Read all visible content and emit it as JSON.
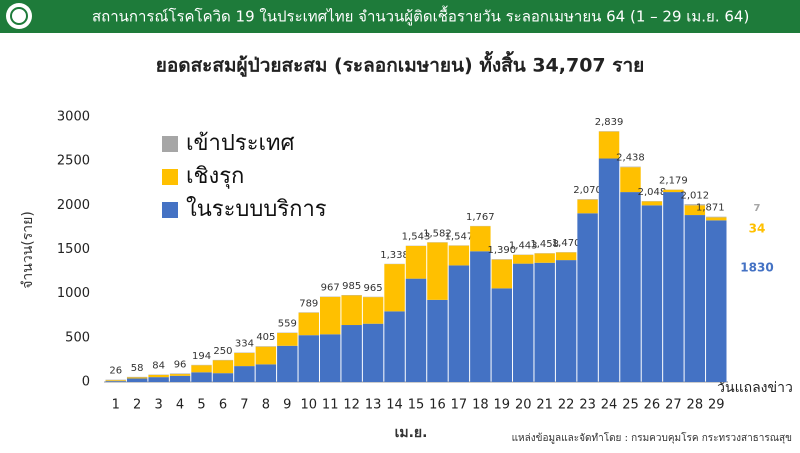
{
  "header": {
    "title": "สถานการณ์โรคโควิด 19 ในประเทศไทย จำนวนผู้ติดเชื้อรายวัน ระลอกเมษายน 64 (1 – 29 เม.ย. 64)"
  },
  "chart_data": {
    "type": "stacked-bar",
    "title": "ยอดสะสมผู้ป่วยสะสม (ระลอกเมษายน) ทั้งสิ้น 34,707 ราย",
    "y_label": "จำนวน(ราย)",
    "x_label": "เม.ย.",
    "annotation": "วันแถลงข่าว",
    "source": "แหล่งข้อมูลและจัดทำโดย : กรมควบคุมโรค กระทรวงสาธารณสุข",
    "categories": [
      1,
      2,
      3,
      4,
      5,
      6,
      7,
      8,
      9,
      10,
      11,
      12,
      13,
      14,
      15,
      16,
      17,
      18,
      19,
      20,
      21,
      22,
      23,
      24,
      25,
      26,
      27,
      28,
      29
    ],
    "series": [
      {
        "name": "เข้าประเทศ",
        "color": "#a6a6a6",
        "values": [
          6,
          6,
          4,
          6,
          4,
          4,
          4,
          5,
          4,
          4,
          4,
          4,
          4,
          3,
          3,
          3,
          3,
          3,
          4,
          3,
          3,
          3,
          5,
          4,
          6,
          3,
          2,
          12,
          7
        ]
      },
      {
        "name": "เชิงรุก",
        "color": "#ffc000",
        "values": [
          10,
          12,
          25,
          20,
          80,
          146,
          150,
          200,
          145,
          255,
          423,
          336,
          301,
          535,
          370,
          649,
          224,
          284,
          326,
          100,
          105,
          87,
          155,
          305,
          282,
          45,
          27,
          110,
          34
        ]
      },
      {
        "name": "ในระบบบริการ",
        "color": "#4472c4",
        "values": [
          10,
          40,
          55,
          70,
          110,
          100,
          180,
          200,
          410,
          530,
          540,
          645,
          660,
          800,
          1170,
          930,
          1320,
          1480,
          1060,
          1340,
          1350,
          1380,
          1910,
          2530,
          2150,
          2000,
          2150,
          1890,
          1830
        ]
      }
    ],
    "totals": {
      "values": [
        26,
        58,
        84,
        96,
        194,
        250,
        334,
        405,
        559,
        789,
        967,
        985,
        965,
        1338,
        1543,
        1582,
        1547,
        1767,
        1390,
        1443,
        1458,
        1470,
        2070,
        2839,
        2438,
        2048,
        2179,
        2012,
        1871
      ],
      "value_labels": [
        "26",
        "58",
        "84",
        "96",
        "194",
        "250",
        "334",
        "405",
        "559",
        "789",
        "967",
        "985",
        "965",
        "1,338",
        "1,543",
        "1,582",
        "1,547",
        "1,767",
        "1,390",
        "1,443",
        "1,458",
        "1,470",
        "2,070",
        "2,839",
        "2,438",
        "2,048",
        "2,179",
        "2,012",
        "1,871"
      ]
    },
    "ylim": [
      0,
      3000
    ],
    "yticks": [
      0,
      500,
      1000,
      1500,
      2000,
      2500,
      3000
    ],
    "grid": false
  }
}
